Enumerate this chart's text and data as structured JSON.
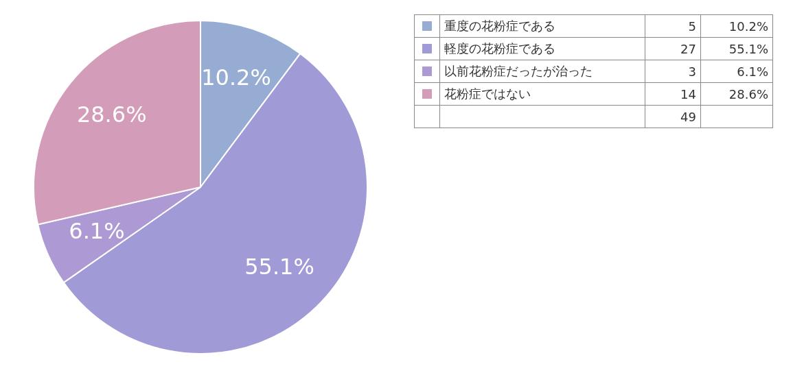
{
  "chart_data": {
    "type": "pie",
    "categories": [
      "重度の花粉症である",
      "軽度の花粉症である",
      "以前花粉症だったが治った",
      "花粉症ではない"
    ],
    "values": [
      10.2,
      55.1,
      6.1,
      28.6
    ],
    "colors": [
      "#97acd3",
      "#a09ad6",
      "#ad9ad4",
      "#d39cb9"
    ],
    "value_labels": [
      "10.2%",
      "55.1%",
      "6.1%",
      "28.6%"
    ],
    "annotations": [
      "5",
      "27",
      "3",
      "14",
      "49"
    ],
    "legend": "top right"
  }
}
